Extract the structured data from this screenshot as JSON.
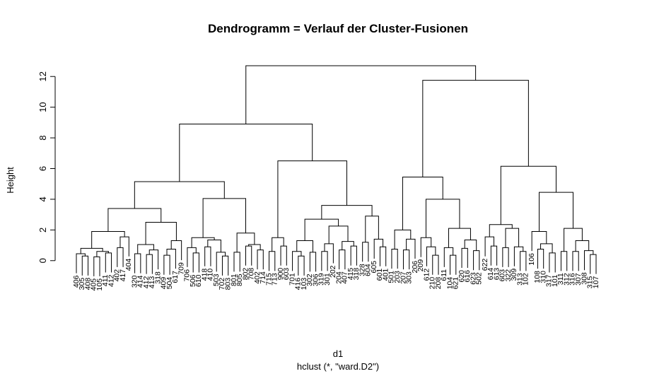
{
  "chart_data": {
    "type": "dendrogram",
    "title": "Dendrogramm = Verlauf der Cluster-Fusionen",
    "ylabel": "Height",
    "xlabel": "d1",
    "subtitle": "hclust (*, \"ward.D2\")",
    "ylim": [
      -1.3,
      13.3
    ],
    "yticks": [
      0,
      2,
      4,
      6,
      8,
      10,
      12
    ],
    "hang": 0.1,
    "color": "#000000",
    "labels": [
      "406",
      "305",
      "408",
      "405",
      "105",
      "411",
      "412",
      "402",
      "417",
      "404",
      "320",
      "414",
      "412",
      "413",
      "318",
      "409",
      "504",
      "617",
      "709",
      "706",
      "506",
      "610",
      "418",
      "410",
      "503",
      "702",
      "803",
      "801",
      "805",
      "802",
      "708",
      "402",
      "714",
      "715",
      "713",
      "900",
      "603",
      "701",
      "416",
      "103",
      "302",
      "306",
      "319",
      "301",
      "202",
      "204",
      "407",
      "415",
      "318",
      "328",
      "604",
      "605",
      "601",
      "401",
      "501",
      "203",
      "207",
      "303",
      "206",
      "209",
      "612",
      "210",
      "208",
      "611",
      "104",
      "621",
      "620",
      "616",
      "623",
      "502",
      "622",
      "614",
      "613",
      "603",
      "322",
      "309",
      "313",
      "102",
      "106",
      "108",
      "310",
      "317",
      "101",
      "311",
      "312",
      "316",
      "307",
      "308",
      "315",
      "107"
    ],
    "tree": {
      "h": 12.7,
      "c": [
        {
          "h": 8.9,
          "c": [
            {
              "h": 5.15,
              "c": [
                {
                  "h": 3.4,
                  "c": [
                    {
                      "h": 1.9,
                      "c": [
                        {
                          "h": 0.8,
                          "c": [
                            {
                              "h": 0.45,
                              "c": [
                                0,
                                {
                                  "h": 0.3,
                                  "c": [
                                    1,
                                    2
                                  ]
                                }
                              ]
                            },
                            {
                              "h": 0.6,
                              "c": [
                                {
                                  "h": 0.25,
                                  "c": [
                                    3,
                                    4
                                  ]
                                },
                                {
                                  "h": 0.5,
                                  "c": [
                                    5,
                                    6
                                  ]
                                }
                              ]
                            }
                          ]
                        },
                        {
                          "h": 1.55,
                          "c": [
                            {
                              "h": 0.85,
                              "c": [
                                7,
                                8
                              ]
                            },
                            9
                          ]
                        }
                      ]
                    },
                    {
                      "h": 2.5,
                      "c": [
                        {
                          "h": 1.05,
                          "c": [
                            {
                              "h": 0.45,
                              "c": [
                                10,
                                11
                              ]
                            },
                            {
                              "h": 0.7,
                              "c": [
                                {
                                  "h": 0.4,
                                  "c": [
                                    12,
                                    13
                                  ]
                                },
                                14
                              ]
                            }
                          ]
                        },
                        {
                          "h": 1.3,
                          "c": [
                            {
                              "h": 0.75,
                              "c": [
                                {
                                  "h": 0.35,
                                  "c": [
                                    15,
                                    16
                                  ]
                                },
                                17
                              ]
                            },
                            18
                          ]
                        }
                      ]
                    }
                  ]
                },
                {
                  "h": 4.05,
                  "c": [
                    {
                      "h": 1.5,
                      "c": [
                        {
                          "h": 0.85,
                          "c": [
                            19,
                            {
                              "h": 0.5,
                              "c": [
                                20,
                                21
                              ]
                            }
                          ]
                        },
                        {
                          "h": 1.35,
                          "c": [
                            {
                              "h": 0.9,
                              "c": [
                                22,
                                23
                              ]
                            },
                            {
                              "h": 0.55,
                              "c": [
                                24,
                                {
                                  "h": 0.3,
                                  "c": [
                                    25,
                                    26
                                  ]
                                }
                              ]
                            }
                          ]
                        }
                      ]
                    },
                    {
                      "h": 1.8,
                      "c": [
                        {
                          "h": 0.55,
                          "c": [
                            27,
                            28
                          ]
                        },
                        {
                          "h": 1.05,
                          "c": [
                            {
                              "h": 0.95,
                              "c": [
                                29,
                                30
                              ]
                            },
                            {
                              "h": 0.7,
                              "c": [
                                31,
                                32
                              ]
                            }
                          ]
                        }
                      ]
                    }
                  ]
                }
              ]
            },
            {
              "h": 6.5,
              "c": [
                {
                  "h": 1.5,
                  "c": [
                    {
                      "h": 0.6,
                      "c": [
                        33,
                        34
                      ]
                    },
                    {
                      "h": 0.95,
                      "c": [
                        35,
                        36
                      ]
                    }
                  ]
                },
                {
                  "h": 3.6,
                  "c": [
                    {
                      "h": 2.7,
                      "c": [
                        {
                          "h": 1.3,
                          "c": [
                            {
                              "h": 0.6,
                              "c": [
                                37,
                                {
                                  "h": 0.3,
                                  "c": [
                                    38,
                                    39
                                  ]
                                }
                              ]
                            },
                            {
                              "h": 0.55,
                              "c": [
                                40,
                                41
                              ]
                            }
                          ]
                        },
                        {
                          "h": 2.25,
                          "c": [
                            {
                              "h": 1.1,
                              "c": [
                                {
                                  "h": 0.6,
                                  "c": [
                                    42,
                                    43
                                  ]
                                },
                                44
                              ]
                            },
                            {
                              "h": 1.25,
                              "c": [
                                {
                                  "h": 0.7,
                                  "c": [
                                    45,
                                    46
                                  ]
                                },
                                {
                                  "h": 0.95,
                                  "c": [
                                    47,
                                    48
                                  ]
                                }
                              ]
                            }
                          ]
                        }
                      ]
                    },
                    {
                      "h": 2.9,
                      "c": [
                        {
                          "h": 1.2,
                          "c": [
                            49,
                            50
                          ]
                        },
                        {
                          "h": 1.4,
                          "c": [
                            51,
                            {
                              "h": 0.9,
                              "c": [
                                52,
                                53
                              ]
                            }
                          ]
                        }
                      ]
                    }
                  ]
                }
              ]
            }
          ]
        },
        {
          "h": 11.75,
          "c": [
            {
              "h": 5.45,
              "c": [
                {
                  "h": 2.0,
                  "c": [
                    {
                      "h": 0.75,
                      "c": [
                        54,
                        55
                      ]
                    },
                    {
                      "h": 1.4,
                      "c": [
                        {
                          "h": 0.7,
                          "c": [
                            56,
                            57
                          ]
                        },
                        58
                      ]
                    }
                  ]
                },
                {
                  "h": 4.0,
                  "c": [
                    {
                      "h": 1.5,
                      "c": [
                        59,
                        {
                          "h": 0.9,
                          "c": [
                            60,
                            {
                              "h": 0.35,
                              "c": [
                                61,
                                62
                              ]
                            }
                          ]
                        }
                      ]
                    },
                    {
                      "h": 2.1,
                      "c": [
                        {
                          "h": 0.85,
                          "c": [
                            63,
                            {
                              "h": 0.35,
                              "c": [
                                64,
                                65
                              ]
                            }
                          ]
                        },
                        {
                          "h": 1.35,
                          "c": [
                            {
                              "h": 0.8,
                              "c": [
                                66,
                                67
                              ]
                            },
                            {
                              "h": 0.65,
                              "c": [
                                68,
                                69
                              ]
                            }
                          ]
                        }
                      ]
                    }
                  ]
                }
              ]
            },
            {
              "h": 6.15,
              "c": [
                {
                  "h": 2.35,
                  "c": [
                    {
                      "h": 1.55,
                      "c": [
                        70,
                        {
                          "h": 0.95,
                          "c": [
                            71,
                            72
                          ]
                        }
                      ]
                    },
                    {
                      "h": 2.1,
                      "c": [
                        {
                          "h": 0.85,
                          "c": [
                            73,
                            74
                          ]
                        },
                        {
                          "h": 0.9,
                          "c": [
                            75,
                            {
                              "h": 0.6,
                              "c": [
                                76,
                                77
                              ]
                            }
                          ]
                        }
                      ]
                    }
                  ]
                },
                {
                  "h": 4.45,
                  "c": [
                    {
                      "h": 1.9,
                      "c": [
                        78,
                        {
                          "h": 1.1,
                          "c": [
                            {
                              "h": 0.75,
                              "c": [
                                79,
                                80
                              ]
                            },
                            {
                              "h": 0.5,
                              "c": [
                                81,
                                82
                              ]
                            }
                          ]
                        }
                      ]
                    },
                    {
                      "h": 2.1,
                      "c": [
                        {
                          "h": 0.6,
                          "c": [
                            83,
                            84
                          ]
                        },
                        {
                          "h": 1.3,
                          "c": [
                            {
                              "h": 0.6,
                              "c": [
                                85,
                                86
                              ]
                            },
                            {
                              "h": 0.65,
                              "c": [
                                87,
                                {
                                  "h": 0.4,
                                  "c": [
                                    88,
                                    89
                                  ]
                                }
                              ]
                            }
                          ]
                        }
                      ]
                    }
                  ]
                }
              ]
            }
          ]
        }
      ]
    }
  }
}
